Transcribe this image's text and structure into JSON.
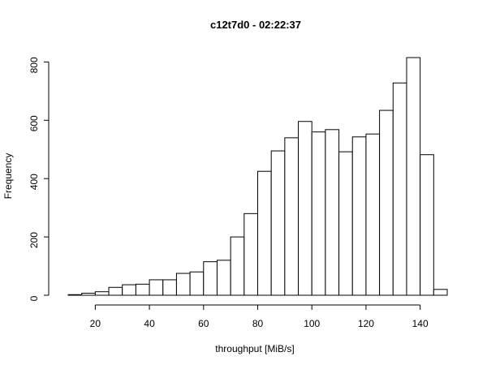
{
  "chart_data": {
    "type": "bar",
    "title": "c12t7d0 - 02:22:37",
    "xlabel": "throughput [MiB/s]",
    "ylabel": "Frequency",
    "bin_width": 5,
    "bins": [
      {
        "start": 10,
        "end": 15,
        "count": 2
      },
      {
        "start": 15,
        "end": 20,
        "count": 7
      },
      {
        "start": 20,
        "end": 25,
        "count": 12
      },
      {
        "start": 25,
        "end": 30,
        "count": 27
      },
      {
        "start": 30,
        "end": 35,
        "count": 36
      },
      {
        "start": 35,
        "end": 40,
        "count": 38
      },
      {
        "start": 40,
        "end": 45,
        "count": 53
      },
      {
        "start": 45,
        "end": 50,
        "count": 53
      },
      {
        "start": 50,
        "end": 55,
        "count": 75
      },
      {
        "start": 55,
        "end": 60,
        "count": 80
      },
      {
        "start": 60,
        "end": 65,
        "count": 115
      },
      {
        "start": 65,
        "end": 70,
        "count": 120
      },
      {
        "start": 70,
        "end": 75,
        "count": 200
      },
      {
        "start": 75,
        "end": 80,
        "count": 280
      },
      {
        "start": 80,
        "end": 85,
        "count": 425
      },
      {
        "start": 85,
        "end": 90,
        "count": 495
      },
      {
        "start": 90,
        "end": 95,
        "count": 540
      },
      {
        "start": 95,
        "end": 100,
        "count": 596
      },
      {
        "start": 100,
        "end": 105,
        "count": 560
      },
      {
        "start": 105,
        "end": 110,
        "count": 568
      },
      {
        "start": 110,
        "end": 115,
        "count": 492
      },
      {
        "start": 115,
        "end": 120,
        "count": 543
      },
      {
        "start": 120,
        "end": 125,
        "count": 553
      },
      {
        "start": 125,
        "end": 130,
        "count": 634
      },
      {
        "start": 130,
        "end": 135,
        "count": 728
      },
      {
        "start": 135,
        "end": 140,
        "count": 815
      },
      {
        "start": 140,
        "end": 145,
        "count": 482
      },
      {
        "start": 145,
        "end": 150,
        "count": 20
      }
    ],
    "xticks": [
      20,
      40,
      60,
      80,
      100,
      120,
      140
    ],
    "yticks": [
      0,
      200,
      400,
      600,
      800
    ],
    "xlim": [
      8.5,
      150
    ],
    "ylim": [
      0,
      815
    ],
    "grid": false,
    "colors": {
      "bar_fill": "#ffffff",
      "bar_stroke": "#000000",
      "axis": "#000000"
    }
  }
}
